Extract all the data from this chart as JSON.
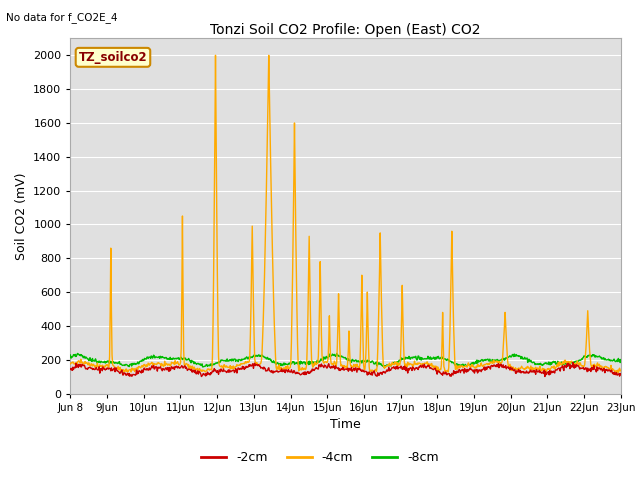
{
  "title": "Tonzi Soil CO2 Profile: Open (East) CO2",
  "subtitle": "No data for f_CO2E_4",
  "ylabel": "Soil CO2 (mV)",
  "xlabel": "Time",
  "legend_label": "TZ_soilco2",
  "ylim": [
    0,
    2100
  ],
  "yticks": [
    0,
    200,
    400,
    600,
    800,
    1000,
    1200,
    1400,
    1600,
    1800,
    2000
  ],
  "series_labels": [
    "-2cm",
    "-4cm",
    "-8cm"
  ],
  "series_colors": [
    "#cc0000",
    "#ffaa00",
    "#00bb00"
  ],
  "n_points": 900,
  "start_day": 8,
  "end_day": 23,
  "background_color": "#e0e0e0",
  "legend_box_color": "#ffffcc",
  "legend_box_edge": "#cc8800",
  "legend_text_color": "#880000",
  "title_fontsize": 10,
  "axis_fontsize": 9,
  "tick_fontsize": 8,
  "spike_positions_4cm": [
    9.1,
    11.05,
    11.95,
    12.95,
    13.4,
    14.1,
    14.5,
    14.8,
    15.05,
    15.3,
    15.6,
    15.95,
    16.1,
    16.45,
    17.05,
    18.15,
    18.4,
    19.85,
    22.1
  ],
  "spike_heights_4cm": [
    860,
    1050,
    2000,
    990,
    2000,
    1600,
    930,
    780,
    460,
    590,
    370,
    700,
    600,
    950,
    640,
    480,
    960,
    480,
    490
  ],
  "spike_widths_4cm": [
    2,
    2,
    5,
    4,
    12,
    6,
    4,
    3,
    2,
    3,
    2,
    3,
    3,
    5,
    3,
    2,
    5,
    5,
    5
  ]
}
